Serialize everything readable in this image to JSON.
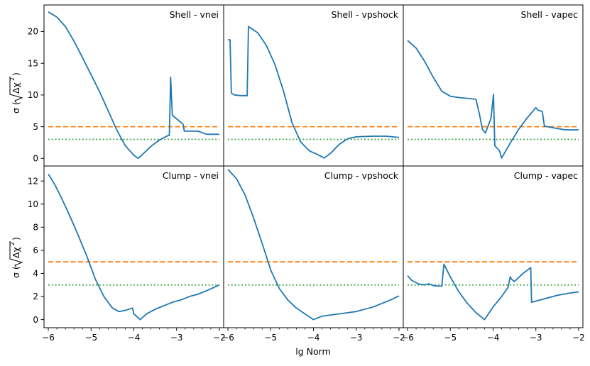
{
  "figure": {
    "xlabel": "lg Norm",
    "ylabel_prefix": "σ (",
    "ylabel_inner": "Δχ",
    "ylabel_power": "2",
    "ylabel_suffix": ")"
  },
  "chart_data": [
    {
      "type": "line",
      "title": "Shell - vnei",
      "xlim": [
        -6.1,
        -1.9
      ],
      "ylim": [
        -1.2,
        24.2
      ],
      "xticks": [
        -6,
        -5,
        -4,
        -3,
        -2
      ],
      "yticks": [
        0,
        5,
        10,
        15,
        20
      ],
      "reference_lines": [
        {
          "name": "5 sigma",
          "y": 5,
          "color": "#ff7f0e",
          "style": "dashed"
        },
        {
          "name": "3 sigma",
          "y": 3,
          "color": "#2ca02c",
          "style": "dotted"
        }
      ],
      "series": [
        {
          "name": "sigma",
          "color": "#1f77b4",
          "x": [
            -6.0,
            -5.8,
            -5.6,
            -5.4,
            -5.2,
            -5.0,
            -4.8,
            -4.6,
            -4.4,
            -4.2,
            -4.0,
            -3.9,
            -3.8,
            -3.6,
            -3.4,
            -3.2,
            -3.17,
            -3.14,
            -3.1,
            -2.85,
            -2.82,
            -2.5,
            -2.3,
            -2.0
          ],
          "y": [
            23.1,
            22.3,
            20.8,
            18.5,
            15.9,
            13.2,
            10.5,
            7.5,
            4.5,
            2.0,
            0.5,
            0.0,
            0.6,
            1.9,
            2.9,
            3.6,
            3.6,
            12.8,
            6.8,
            5.4,
            4.3,
            4.3,
            3.8,
            3.8
          ]
        }
      ]
    },
    {
      "type": "line",
      "title": "Shell - vpshock",
      "xlim": [
        -6.1,
        -1.9
      ],
      "ylim": [
        -1.2,
        24.2
      ],
      "xticks": [
        -6,
        -5,
        -4,
        -3,
        -2
      ],
      "yticks": [],
      "reference_lines": [
        {
          "name": "5 sigma",
          "y": 5,
          "color": "#ff7f0e",
          "style": "dashed"
        },
        {
          "name": "3 sigma",
          "y": 3,
          "color": "#2ca02c",
          "style": "dotted"
        }
      ],
      "series": [
        {
          "name": "sigma",
          "color": "#1f77b4",
          "x": [
            -6.0,
            -5.95,
            -5.92,
            -5.85,
            -5.7,
            -5.55,
            -5.52,
            -5.3,
            -5.1,
            -4.9,
            -4.7,
            -4.5,
            -4.3,
            -4.1,
            -3.9,
            -3.75,
            -3.6,
            -3.4,
            -3.2,
            -3.0,
            -2.6,
            -2.3,
            -2.0
          ],
          "y": [
            18.7,
            18.7,
            10.3,
            10.0,
            9.9,
            9.9,
            20.8,
            19.8,
            17.8,
            14.8,
            10.6,
            5.6,
            2.6,
            1.2,
            0.6,
            0.05,
            0.8,
            2.2,
            3.1,
            3.4,
            3.5,
            3.5,
            3.3
          ]
        }
      ]
    },
    {
      "type": "line",
      "title": "Shell - vapec",
      "xlim": [
        -6.1,
        -1.9
      ],
      "ylim": [
        -1.2,
        24.2
      ],
      "xticks": [
        -6,
        -5,
        -4,
        -3,
        -2
      ],
      "yticks": [],
      "reference_lines": [
        {
          "name": "5 sigma",
          "y": 5,
          "color": "#ff7f0e",
          "style": "dashed"
        },
        {
          "name": "3 sigma",
          "y": 3,
          "color": "#2ca02c",
          "style": "dotted"
        }
      ],
      "series": [
        {
          "name": "sigma",
          "color": "#1f77b4",
          "x": [
            -6.0,
            -5.8,
            -5.6,
            -5.4,
            -5.2,
            -5.0,
            -4.8,
            -4.5,
            -4.4,
            -4.32,
            -4.25,
            -4.18,
            -4.05,
            -3.99,
            -3.96,
            -3.85,
            -3.8,
            -3.6,
            -3.4,
            -3.2,
            -3.0,
            -2.95,
            -2.85,
            -2.8,
            -2.5,
            -2.3,
            -2.0
          ],
          "y": [
            18.6,
            17.4,
            15.3,
            12.8,
            10.6,
            9.8,
            9.6,
            9.4,
            9.3,
            7.0,
            4.6,
            4.0,
            6.3,
            10.1,
            2.0,
            1.2,
            0.05,
            2.4,
            4.6,
            6.4,
            8.0,
            7.6,
            7.4,
            5.1,
            4.7,
            4.5,
            4.5
          ]
        }
      ]
    },
    {
      "type": "line",
      "title": "Clump - vnei",
      "xlim": [
        -6.1,
        -1.9
      ],
      "ylim": [
        -0.7,
        13.3
      ],
      "xticks": [
        -6,
        -5,
        -4,
        -3,
        -2
      ],
      "yticks": [
        0,
        2,
        4,
        6,
        8,
        10,
        12
      ],
      "reference_lines": [
        {
          "name": "5 sigma",
          "y": 5,
          "color": "#ff7f0e",
          "style": "dashed"
        },
        {
          "name": "3 sigma",
          "y": 3,
          "color": "#2ca02c",
          "style": "dotted"
        }
      ],
      "series": [
        {
          "name": "sigma",
          "color": "#1f77b4",
          "x": [
            -6.0,
            -5.85,
            -5.7,
            -5.5,
            -5.3,
            -5.1,
            -4.9,
            -4.7,
            -4.5,
            -4.35,
            -4.2,
            -4.03,
            -4.0,
            -3.85,
            -3.7,
            -3.5,
            -3.3,
            -3.1,
            -2.9,
            -2.7,
            -2.5,
            -2.3,
            -2.0
          ],
          "y": [
            12.6,
            11.7,
            10.6,
            9.0,
            7.3,
            5.5,
            3.5,
            2.0,
            1.0,
            0.7,
            0.8,
            1.0,
            0.5,
            0.0,
            0.5,
            0.9,
            1.2,
            1.5,
            1.7,
            2.0,
            2.2,
            2.5,
            3.0
          ]
        }
      ]
    },
    {
      "type": "line",
      "title": "Clump - vpshock",
      "xlim": [
        -6.1,
        -1.9
      ],
      "ylim": [
        -0.7,
        13.3
      ],
      "xticks": [
        -6,
        -5,
        -4,
        -3,
        -2
      ],
      "yticks": [],
      "reference_lines": [
        {
          "name": "5 sigma",
          "y": 5,
          "color": "#ff7f0e",
          "style": "dashed"
        },
        {
          "name": "3 sigma",
          "y": 3,
          "color": "#2ca02c",
          "style": "dotted"
        }
      ],
      "series": [
        {
          "name": "sigma",
          "color": "#1f77b4",
          "x": [
            -6.0,
            -5.8,
            -5.6,
            -5.4,
            -5.2,
            -5.0,
            -4.8,
            -4.6,
            -4.4,
            -4.2,
            -4.0,
            -3.9,
            -3.8,
            -3.6,
            -3.4,
            -3.2,
            -3.0,
            -2.8,
            -2.6,
            -2.4,
            -2.2,
            -2.0
          ],
          "y": [
            13.0,
            12.2,
            10.8,
            8.8,
            6.6,
            4.3,
            2.7,
            1.7,
            1.0,
            0.5,
            0.0,
            0.15,
            0.3,
            0.4,
            0.5,
            0.6,
            0.7,
            0.9,
            1.1,
            1.4,
            1.7,
            2.05
          ]
        }
      ]
    },
    {
      "type": "line",
      "title": "Clump - vapec",
      "xlim": [
        -6.1,
        -1.9
      ],
      "ylim": [
        -0.7,
        13.3
      ],
      "xticks": [
        -6,
        -5,
        -4,
        -3,
        -2
      ],
      "yticks": [],
      "reference_lines": [
        {
          "name": "5 sigma",
          "y": 5,
          "color": "#ff7f0e",
          "style": "dashed"
        },
        {
          "name": "3 sigma",
          "y": 3,
          "color": "#2ca02c",
          "style": "dotted"
        }
      ],
      "series": [
        {
          "name": "sigma",
          "color": "#1f77b4",
          "x": [
            -6.0,
            -5.9,
            -5.75,
            -5.6,
            -5.5,
            -5.4,
            -5.3,
            -5.2,
            -5.15,
            -5.0,
            -4.8,
            -4.6,
            -4.4,
            -4.2,
            -4.0,
            -3.8,
            -3.65,
            -3.6,
            -3.57,
            -3.5,
            -3.3,
            -3.12,
            -3.1,
            -2.8,
            -2.5,
            -2.2,
            -2.0
          ],
          "y": [
            3.8,
            3.4,
            3.1,
            3.0,
            3.1,
            2.95,
            2.9,
            2.9,
            4.8,
            3.7,
            2.4,
            1.4,
            0.6,
            0.0,
            1.1,
            2.0,
            2.8,
            3.7,
            3.5,
            3.3,
            4.0,
            4.5,
            1.5,
            1.8,
            2.1,
            2.3,
            2.4
          ]
        }
      ]
    }
  ]
}
